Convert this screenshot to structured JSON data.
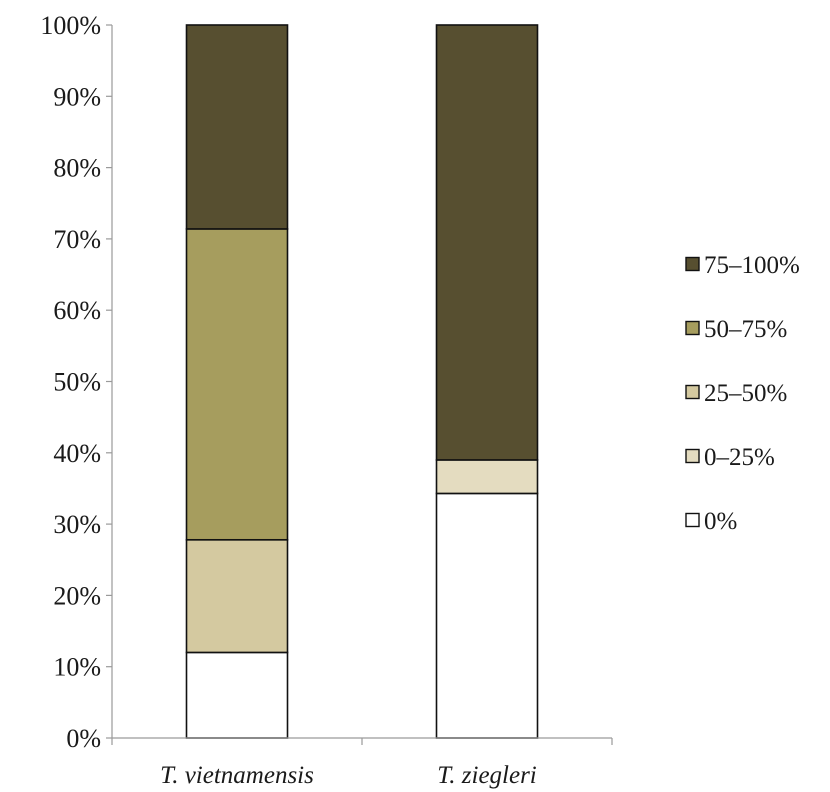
{
  "chart_data": {
    "type": "bar",
    "stacked": true,
    "percent": true,
    "categories": [
      "T. vietnamensis",
      "T. ziegleri"
    ],
    "series": [
      {
        "name": "0%",
        "values": [
          12,
          34.3
        ],
        "color": "#ffffff"
      },
      {
        "name": "0–25%",
        "values": [
          0,
          4.7
        ],
        "color": "#e4dcc0"
      },
      {
        "name": "25–50%",
        "values": [
          15.8,
          0
        ],
        "color": "#d4c9a0"
      },
      {
        "name": "50–75%",
        "values": [
          43.6,
          0
        ],
        "color": "#a69d5e"
      },
      {
        "name": "75–100%",
        "values": [
          28.6,
          61
        ],
        "color": "#574f30"
      }
    ],
    "legend_order": [
      "75–100%",
      "50–75%",
      "25–50%",
      "0–25%",
      "0%"
    ],
    "yticks": [
      "0%",
      "10%",
      "20%",
      "30%",
      "40%",
      "50%",
      "60%",
      "70%",
      "80%",
      "90%",
      "100%"
    ],
    "ylim": [
      0,
      100
    ],
    "grid": false,
    "legend_position": "right",
    "title": "",
    "xlabel": "",
    "ylabel": ""
  }
}
